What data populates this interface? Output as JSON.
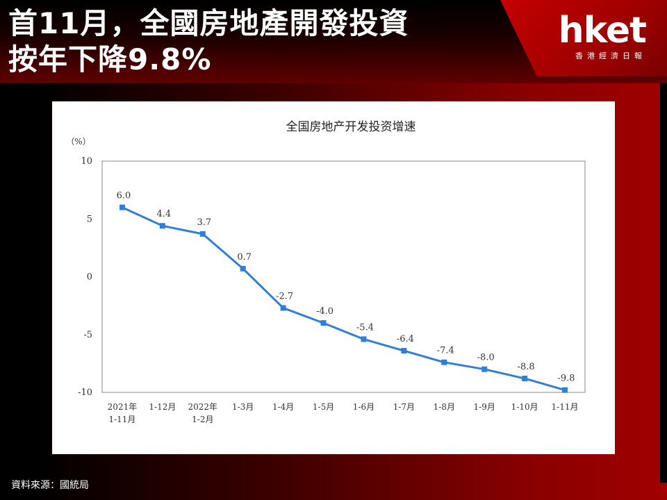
{
  "header": {
    "title_line1": "首11月，全國房地產開發投資",
    "title_line2": "按年下降9.8%"
  },
  "logo": {
    "brand": "hket",
    "subtitle": "香港經濟日報"
  },
  "source": "資料來源：國統局",
  "chart_data": {
    "type": "line",
    "title": "全国房地产开发投资增速",
    "ylabel": "（%）",
    "xlabel": "",
    "ylim": [
      -10,
      10
    ],
    "yticks": [
      10,
      5,
      0,
      -5,
      -10
    ],
    "categories": [
      "2021年 1-11月",
      "1-12月",
      "2022年 1-2月",
      "1-3月",
      "1-4月",
      "1-5月",
      "1-6月",
      "1-7月",
      "1-8月",
      "1-9月",
      "1-10月",
      "1-11月"
    ],
    "series": [
      {
        "values": [
          6.0,
          4.4,
          3.7,
          0.7,
          -2.7,
          -4.0,
          -5.4,
          -6.4,
          -7.4,
          -8.0,
          -8.8,
          -9.8
        ],
        "labels": [
          "6.0",
          "4.4",
          "3.7",
          "0.7",
          "-2.7",
          "-4.0",
          "-5.4",
          "-6.4",
          "-7.4",
          "-8.0",
          "-8.8",
          "-9.8"
        ],
        "color": "#2f7ed8"
      }
    ],
    "grid": false
  }
}
